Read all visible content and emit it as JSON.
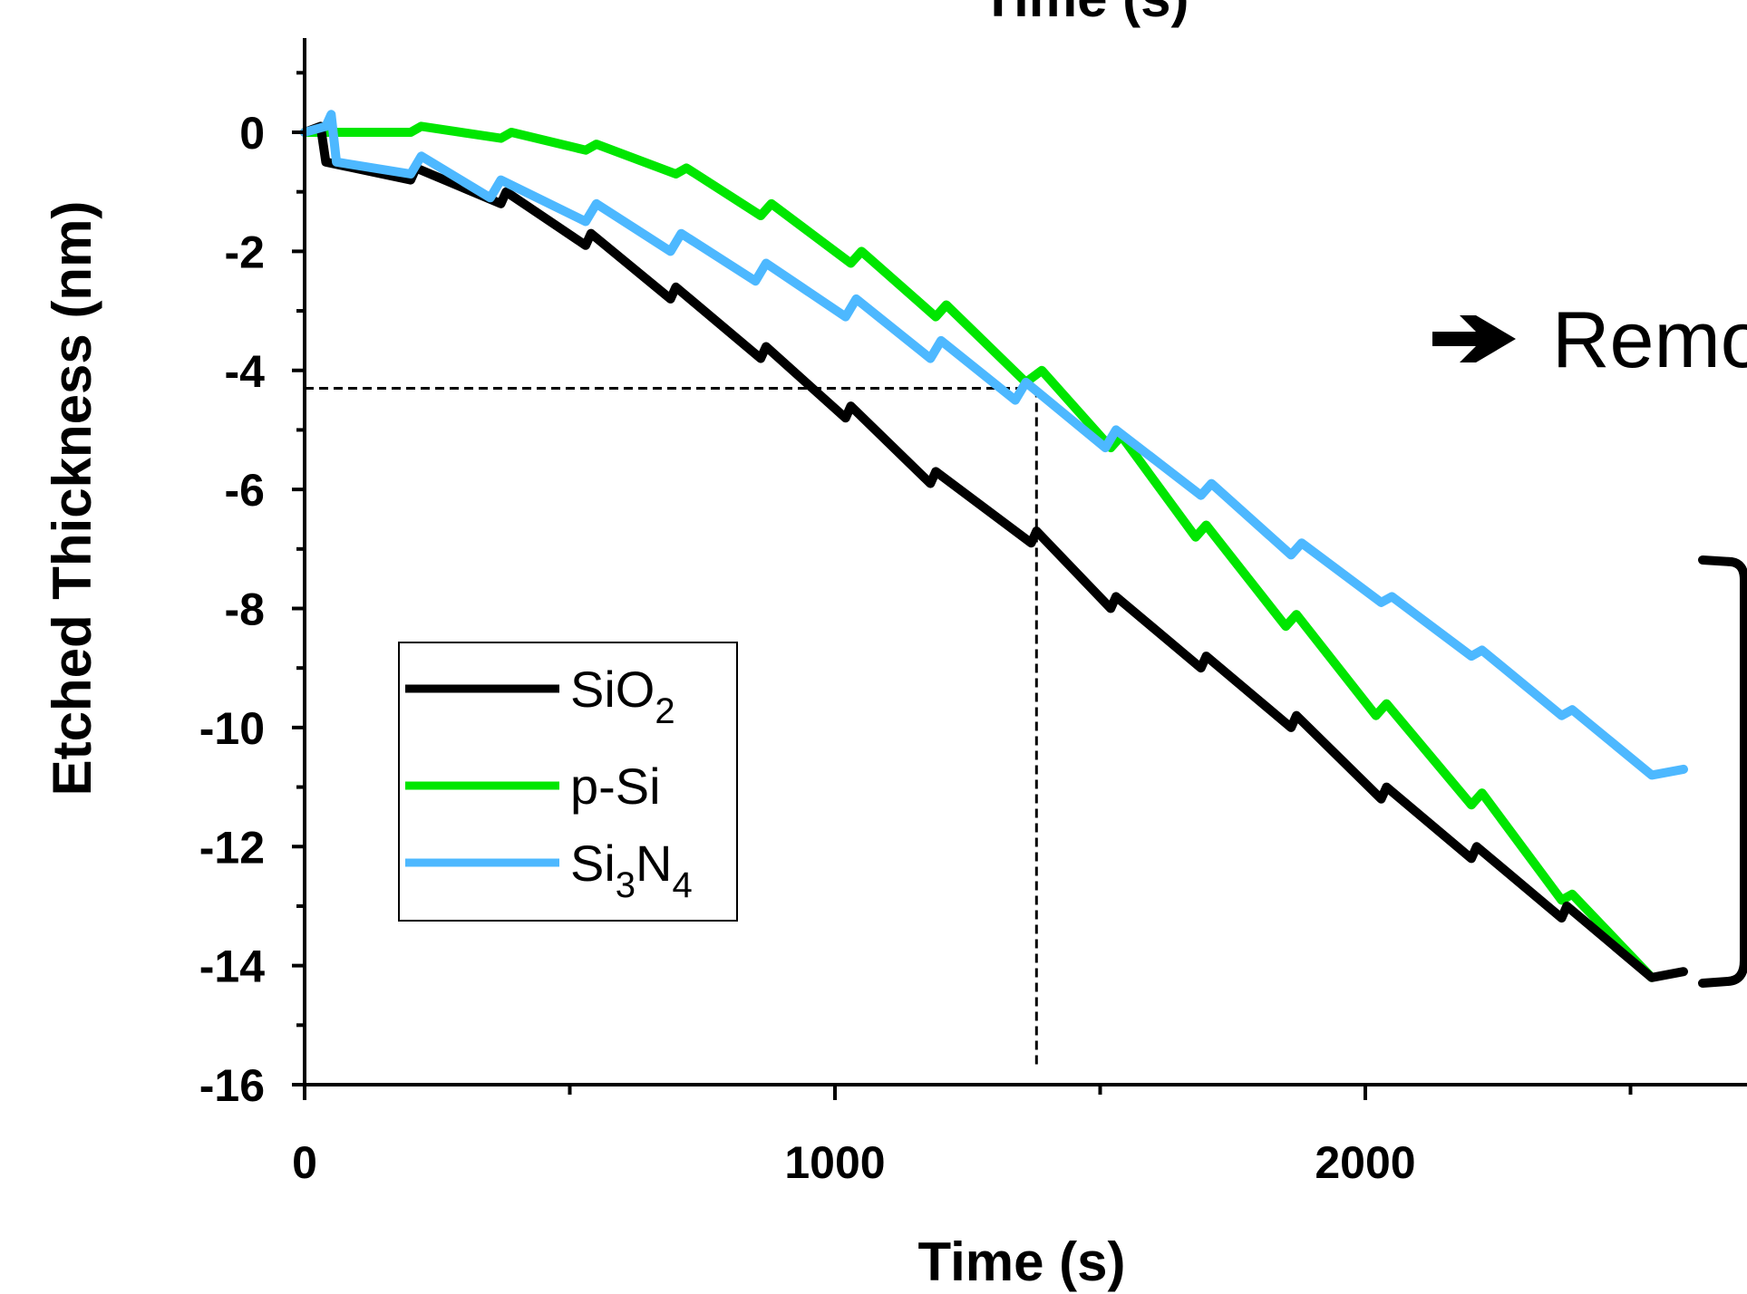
{
  "chart_data": {
    "type": "line",
    "title": "",
    "top_cut_label": "Time (s)",
    "xlabel": "Time (s)",
    "ylabel": "Etched Thickness (nm)",
    "xlim": [
      0,
      2700
    ],
    "ylim": [
      -16,
      1.6
    ],
    "xticks": [
      0,
      1000,
      2000
    ],
    "xtick_labels": [
      "0",
      "1000",
      "2000"
    ],
    "yticks": [
      0,
      -2,
      -4,
      -6,
      -8,
      -10,
      -12,
      -14,
      -16
    ],
    "ytick_labels": [
      "0",
      "-2",
      "-4",
      "-6",
      "-8",
      "-10",
      "-12",
      "-14",
      "-16"
    ],
    "grid": false,
    "legend": {
      "placement": "lower-left",
      "entries": [
        {
          "base": "SiO",
          "sub": "2",
          "tail": "",
          "after": ""
        },
        {
          "base": "p-Si",
          "sub": "",
          "tail": "",
          "after": ""
        },
        {
          "base": "Si",
          "sub": "3",
          "tail": "N",
          "after": "4"
        }
      ]
    },
    "series": [
      {
        "name": "SiO2",
        "color": "#000000",
        "points": [
          [
            0,
            0
          ],
          [
            30,
            0.1
          ],
          [
            40,
            -0.5
          ],
          [
            200,
            -0.8
          ],
          [
            210,
            -0.6
          ],
          [
            370,
            -1.2
          ],
          [
            380,
            -1.0
          ],
          [
            530,
            -1.9
          ],
          [
            540,
            -1.7
          ],
          [
            690,
            -2.8
          ],
          [
            700,
            -2.6
          ],
          [
            860,
            -3.8
          ],
          [
            870,
            -3.6
          ],
          [
            1020,
            -4.8
          ],
          [
            1030,
            -4.6
          ],
          [
            1180,
            -5.9
          ],
          [
            1190,
            -5.7
          ],
          [
            1370,
            -6.9
          ],
          [
            1380,
            -6.7
          ],
          [
            1520,
            -8.0
          ],
          [
            1530,
            -7.8
          ],
          [
            1690,
            -9.0
          ],
          [
            1700,
            -8.8
          ],
          [
            1860,
            -10.0
          ],
          [
            1870,
            -9.8
          ],
          [
            2030,
            -11.2
          ],
          [
            2040,
            -11.0
          ],
          [
            2200,
            -12.2
          ],
          [
            2210,
            -12.0
          ],
          [
            2370,
            -13.2
          ],
          [
            2380,
            -13.0
          ],
          [
            2540,
            -14.2
          ],
          [
            2600,
            -14.1
          ]
        ]
      },
      {
        "name": "p-Si",
        "color": "#00e600",
        "points": [
          [
            0,
            0
          ],
          [
            200,
            0
          ],
          [
            220,
            0.1
          ],
          [
            370,
            -0.1
          ],
          [
            390,
            0
          ],
          [
            530,
            -0.3
          ],
          [
            550,
            -0.2
          ],
          [
            700,
            -0.7
          ],
          [
            720,
            -0.6
          ],
          [
            860,
            -1.4
          ],
          [
            880,
            -1.2
          ],
          [
            1030,
            -2.2
          ],
          [
            1050,
            -2.0
          ],
          [
            1190,
            -3.1
          ],
          [
            1210,
            -2.9
          ],
          [
            1360,
            -4.2
          ],
          [
            1390,
            -4.0
          ],
          [
            1520,
            -5.3
          ],
          [
            1540,
            -5.1
          ],
          [
            1680,
            -6.8
          ],
          [
            1700,
            -6.6
          ],
          [
            1850,
            -8.3
          ],
          [
            1870,
            -8.1
          ],
          [
            2020,
            -9.8
          ],
          [
            2040,
            -9.6
          ],
          [
            2200,
            -11.3
          ],
          [
            2220,
            -11.1
          ],
          [
            2370,
            -12.9
          ],
          [
            2390,
            -12.8
          ],
          [
            2540,
            -14.2
          ]
        ]
      },
      {
        "name": "Si3N4",
        "color": "#4db8ff",
        "points": [
          [
            0,
            0
          ],
          [
            40,
            0.1
          ],
          [
            50,
            0.3
          ],
          [
            60,
            -0.5
          ],
          [
            200,
            -0.7
          ],
          [
            220,
            -0.4
          ],
          [
            350,
            -1.1
          ],
          [
            370,
            -0.8
          ],
          [
            530,
            -1.5
          ],
          [
            550,
            -1.2
          ],
          [
            690,
            -2.0
          ],
          [
            710,
            -1.7
          ],
          [
            850,
            -2.5
          ],
          [
            870,
            -2.2
          ],
          [
            1020,
            -3.1
          ],
          [
            1040,
            -2.8
          ],
          [
            1180,
            -3.8
          ],
          [
            1200,
            -3.5
          ],
          [
            1340,
            -4.5
          ],
          [
            1360,
            -4.2
          ],
          [
            1510,
            -5.3
          ],
          [
            1530,
            -5.0
          ],
          [
            1690,
            -6.1
          ],
          [
            1710,
            -5.9
          ],
          [
            1860,
            -7.1
          ],
          [
            1880,
            -6.9
          ],
          [
            2030,
            -7.9
          ],
          [
            2050,
            -7.8
          ],
          [
            2200,
            -8.8
          ],
          [
            2220,
            -8.7
          ],
          [
            2370,
            -9.8
          ],
          [
            2390,
            -9.7
          ],
          [
            2540,
            -10.8
          ],
          [
            2600,
            -10.7
          ]
        ]
      }
    ],
    "guide_lines": {
      "x": 1380,
      "y": -4.3
    },
    "annotation": {
      "text": "Remo"
    }
  }
}
